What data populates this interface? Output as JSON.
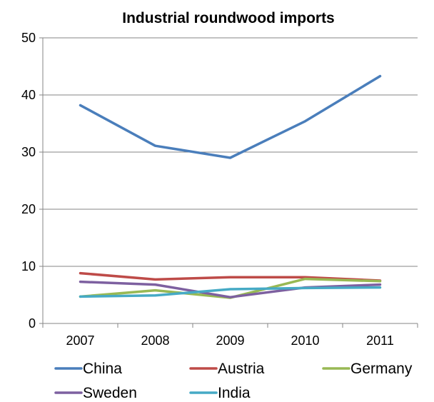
{
  "chart_data": {
    "type": "line",
    "title": "Industrial roundwood imports",
    "xlabel": "",
    "ylabel": "",
    "categories": [
      "2007",
      "2008",
      "2009",
      "2010",
      "2011"
    ],
    "ylim": [
      0,
      50
    ],
    "yticks": [
      0,
      10,
      20,
      30,
      40,
      50
    ],
    "grid": true,
    "legend_position": "bottom",
    "series": [
      {
        "name": "China",
        "color": "#4a7ebb",
        "values": [
          38.2,
          31.1,
          29.0,
          35.4,
          43.3
        ]
      },
      {
        "name": "Austria",
        "color": "#be4b48",
        "values": [
          8.8,
          7.7,
          8.1,
          8.1,
          7.5
        ]
      },
      {
        "name": "Germany",
        "color": "#98b954",
        "values": [
          4.7,
          5.8,
          4.5,
          7.8,
          7.4
        ]
      },
      {
        "name": "Sweden",
        "color": "#7d60a0",
        "values": [
          7.3,
          6.8,
          4.6,
          6.3,
          6.8
        ]
      },
      {
        "name": "India",
        "color": "#46aac5",
        "values": [
          4.7,
          4.9,
          6.0,
          6.2,
          6.3
        ]
      }
    ]
  }
}
